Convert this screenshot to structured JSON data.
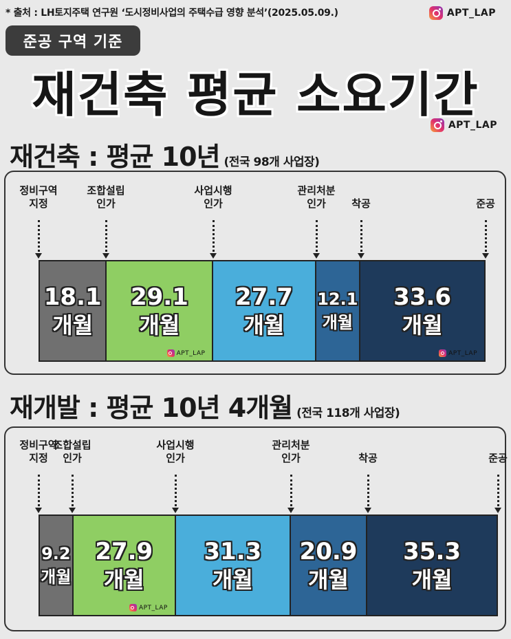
{
  "source": "* 출처 : LH토지주택 연구원 ‘도시정비사업의 주택수급 영향 분석’(2025.05.09.)",
  "handle": "APT_LAP",
  "badge": "준공 구역 기준",
  "main_title": "재건축 평균 소요기간",
  "colors": {
    "gray": "#707070",
    "green": "#8fce63",
    "lightblue": "#4aaedb",
    "midblue": "#2d6596",
    "navy": "#1e3a5b"
  },
  "chart_data": [
    {
      "type": "bar",
      "orientation": "stacked-horizontal",
      "title": "재건축 : 평균 10년",
      "subtitle": "(전국 98개 사업장)",
      "stages": [
        "정비구역\n지정",
        "조합설립\n인가",
        "사업시행\n인가",
        "관리처분\n인가",
        "착공",
        "준공"
      ],
      "categories": [
        "정비구역 지정→조합설립 인가",
        "조합설립 인가→사업시행 인가",
        "사업시행 인가→관리처분 인가",
        "관리처분 인가→착공",
        "착공→준공"
      ],
      "values": [
        18.1,
        29.1,
        27.7,
        12.1,
        33.6
      ],
      "value_labels": [
        "18.1",
        "29.1",
        "27.7",
        "12.1",
        "33.6"
      ],
      "unit": "개월",
      "segment_colors": [
        "gray",
        "green",
        "lightblue",
        "midblue",
        "navy"
      ]
    },
    {
      "type": "bar",
      "orientation": "stacked-horizontal",
      "title": "재개발 : 평균 10년 4개월",
      "subtitle": "(전국 118개 사업장)",
      "stages": [
        "정비구역\n지정",
        "조합설립\n인가",
        "사업시행\n인가",
        "관리처분\n인가",
        "착공",
        "준공"
      ],
      "categories": [
        "정비구역 지정→조합설립 인가",
        "조합설립 인가→사업시행 인가",
        "사업시행 인가→관리처분 인가",
        "관리처분 인가→착공",
        "착공→준공"
      ],
      "values": [
        9.2,
        27.9,
        31.3,
        20.9,
        35.3
      ],
      "value_labels": [
        "9.2",
        "27.9",
        "31.3",
        "20.9",
        "35.3"
      ],
      "unit": "개월",
      "segment_colors": [
        "gray",
        "green",
        "lightblue",
        "midblue",
        "navy"
      ]
    }
  ]
}
